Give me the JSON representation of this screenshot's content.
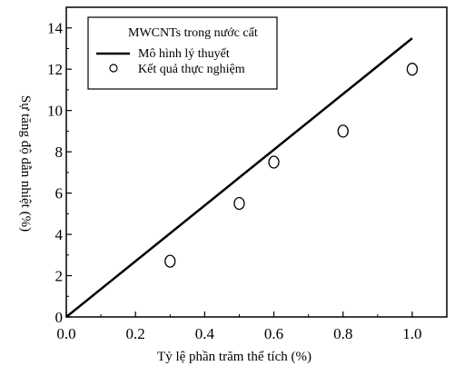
{
  "chart_data": {
    "type": "line",
    "title": "",
    "xlabel": "Tỷ lệ phần trăm thể tích (%)",
    "ylabel": "Sự tăng độ dẫn nhiệt (%)",
    "xlim": [
      0,
      1.1
    ],
    "ylim": [
      0,
      15
    ],
    "x_ticks": [
      0.0,
      0.2,
      0.4,
      0.6,
      0.8,
      1.0
    ],
    "x_tick_labels": [
      "0.0",
      "0.2",
      "0.4",
      "0.6",
      "0.8",
      "1.0"
    ],
    "y_ticks": [
      0,
      2,
      4,
      6,
      8,
      10,
      12,
      14
    ],
    "y_tick_labels": [
      "0",
      "2",
      "4",
      "6",
      "8",
      "10",
      "12",
      "14"
    ],
    "grid": false,
    "legend": {
      "placement": "top-left",
      "title": "MWCNTs trong nước cất",
      "entries": [
        "Mô hình lý thuyết",
        "Kết quả thực nghiệm"
      ]
    },
    "series": [
      {
        "name": "Mô hình lý thuyết",
        "kind": "line",
        "color": "#000000",
        "x": [
          0.0,
          1.0
        ],
        "y": [
          0.0,
          13.5
        ]
      },
      {
        "name": "Kết quả thực nghiệm",
        "kind": "scatter",
        "marker": "open-circle",
        "color": "#000000",
        "x": [
          0.3,
          0.5,
          0.6,
          0.8,
          1.0
        ],
        "y": [
          2.7,
          5.5,
          7.5,
          9.0,
          12.0
        ]
      }
    ]
  }
}
